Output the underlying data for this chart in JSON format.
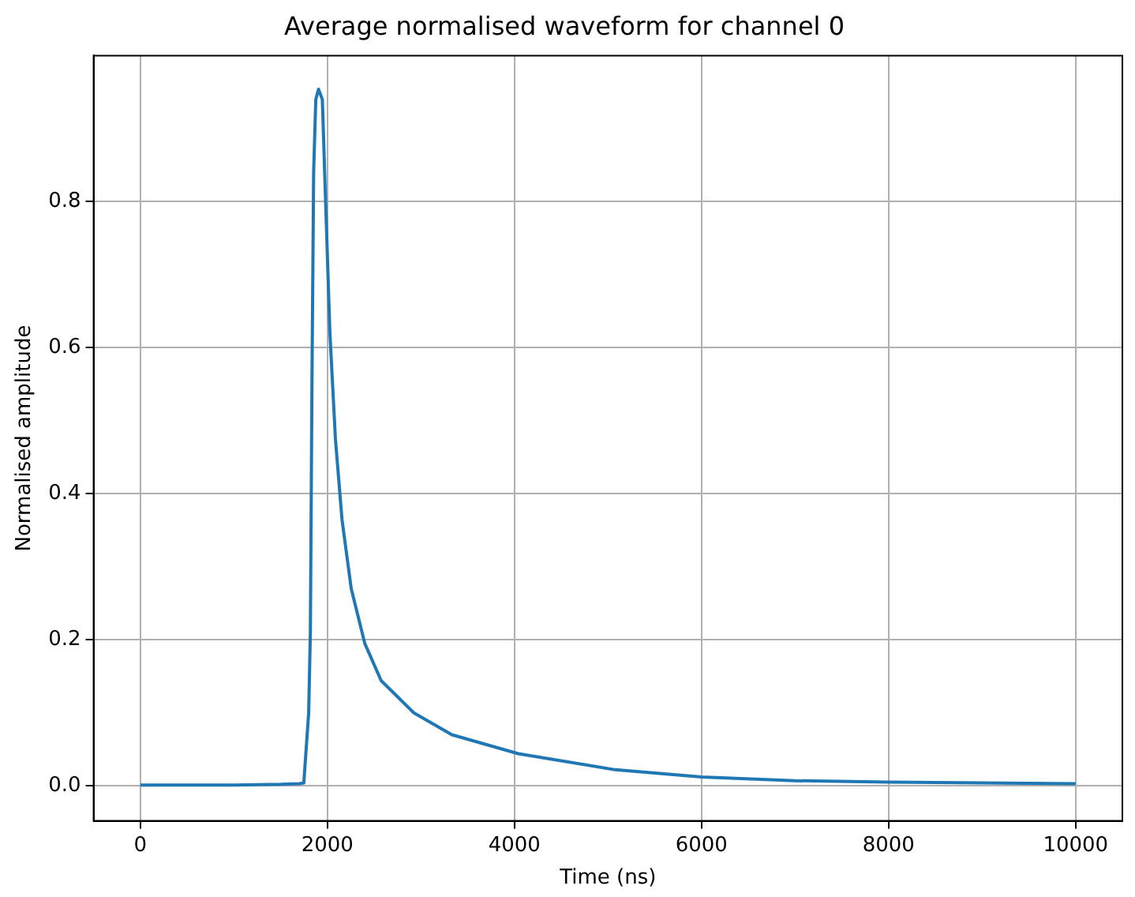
{
  "chart_data": {
    "type": "line",
    "title": "Average normalised waveform for channel 0",
    "xlabel": "Time (ns)",
    "ylabel": "Normalised amplitude",
    "x": [
      0,
      500,
      1000,
      1500,
      1700,
      1748,
      1800,
      1818,
      1835,
      1853,
      1876,
      1905,
      1946,
      1981,
      2027,
      2086,
      2156,
      2255,
      2400,
      2575,
      2924,
      3331,
      4041,
      5077,
      6000,
      7000,
      8000,
      9000,
      10000
    ],
    "series": [
      {
        "color": "#1f77b4",
        "values": [
          0.001,
          0.001,
          0.001,
          0.002,
          0.003,
          0.004,
          0.1,
          0.21,
          0.55,
          0.84,
          0.94,
          0.954,
          0.94,
          0.8,
          0.62,
          0.475,
          0.365,
          0.27,
          0.195,
          0.144,
          0.1,
          0.07,
          0.044,
          0.022,
          0.012,
          0.007,
          0.005,
          0.004,
          0.003
        ]
      }
    ],
    "xlim": [
      -500,
      10500
    ],
    "ylim": [
      -0.048,
      1.0
    ],
    "xticks": [
      0,
      2000,
      4000,
      6000,
      8000,
      10000
    ],
    "yticks": [
      {
        "value": 0,
        "label": "0.0"
      },
      {
        "value": 0.2,
        "label": "0.2"
      },
      {
        "value": 0.4,
        "label": "0.4"
      },
      {
        "value": 0.6,
        "label": "0.6"
      },
      {
        "value": 0.8,
        "label": "0.8"
      }
    ],
    "grid": true,
    "legend": false,
    "marker": "none",
    "line_style": "solid"
  }
}
